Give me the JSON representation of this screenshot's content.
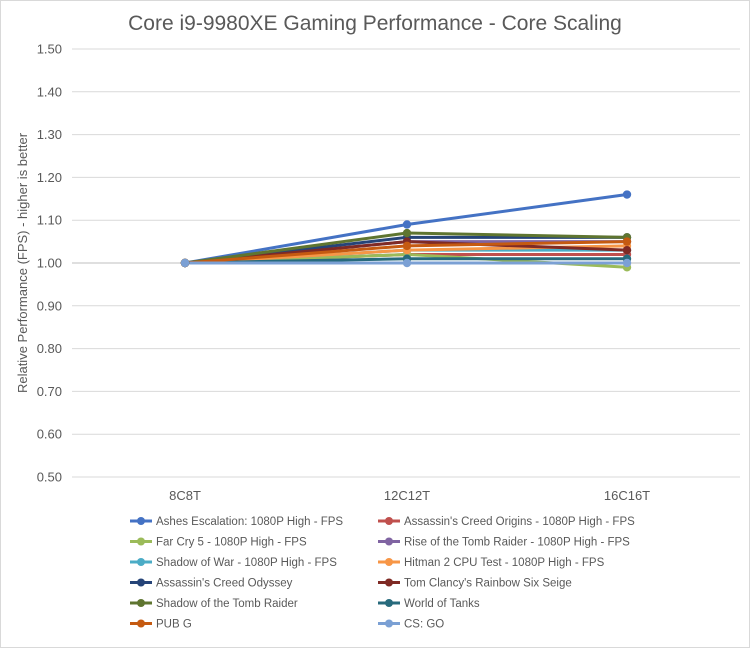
{
  "chart_data": {
    "type": "line",
    "title": "Core i9-9980XE Gaming Performance - Core Scaling",
    "ylabel": "Relative Performance (FPS) - higher is better",
    "xlabel": "",
    "categories": [
      "8C8T",
      "12C12T",
      "16C16T"
    ],
    "ylim": [
      0.5,
      1.5
    ],
    "yticks": [
      "0.50",
      "0.60",
      "0.70",
      "0.80",
      "0.90",
      "1.00",
      "1.10",
      "1.20",
      "1.30",
      "1.40",
      "1.50"
    ],
    "grid": true,
    "legend_position": "bottom",
    "series": [
      {
        "name": "Ashes Escalation: 1080P High - FPS",
        "color": "#4472c4",
        "values": [
          1.0,
          1.09,
          1.16
        ]
      },
      {
        "name": "Assassin's Creed Origins - 1080P High - FPS",
        "color": "#c0504d",
        "values": [
          1.0,
          1.02,
          1.02
        ]
      },
      {
        "name": "Far Cry 5 - 1080P High - FPS",
        "color": "#9bbb59",
        "values": [
          1.0,
          1.02,
          0.99
        ]
      },
      {
        "name": "Rise of the Tomb Raider - 1080P High - FPS",
        "color": "#8064a2",
        "values": [
          1.0,
          1.05,
          1.05
        ]
      },
      {
        "name": "Shadow of War - 1080P High - FPS",
        "color": "#4bacc6",
        "values": [
          1.0,
          1.03,
          1.03
        ]
      },
      {
        "name": "Hitman 2  CPU Test - 1080P High - FPS",
        "color": "#f79646",
        "values": [
          1.0,
          1.03,
          1.04
        ]
      },
      {
        "name": "Assassin's Creed Odyssey",
        "color": "#264478",
        "values": [
          1.0,
          1.06,
          1.06
        ]
      },
      {
        "name": "Tom Clancy's Rainbow Six Seige",
        "color": "#7f2a24",
        "values": [
          1.0,
          1.05,
          1.03
        ]
      },
      {
        "name": "Shadow of the Tomb Raider",
        "color": "#5f7530",
        "values": [
          1.0,
          1.07,
          1.06
        ]
      },
      {
        "name": "World of Tanks",
        "color": "#276a7c",
        "values": [
          1.0,
          1.01,
          1.01
        ]
      },
      {
        "name": "PUB G",
        "color": "#c55a11",
        "values": [
          1.0,
          1.04,
          1.05
        ]
      },
      {
        "name": "CS: GO",
        "color": "#7ba0d4",
        "values": [
          1.0,
          1.0,
          1.0
        ]
      }
    ]
  }
}
